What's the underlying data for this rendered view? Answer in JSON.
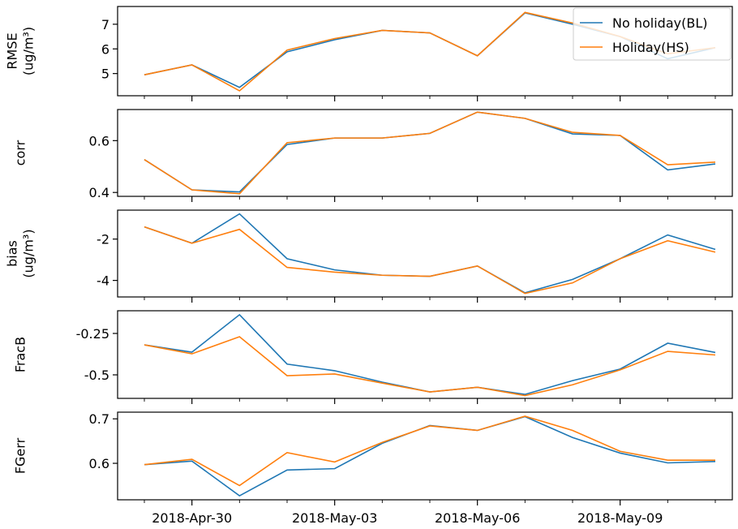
{
  "chart_data": [
    {
      "type": "line",
      "ylabel": [
        "RMSE",
        "(ug/m³)"
      ],
      "ylim": [
        4.1,
        7.72
      ],
      "yticks": [
        5,
        6,
        7
      ],
      "legend": "upper right",
      "x": [
        "2018-Apr-29",
        "2018-Apr-30",
        "2018-May-01",
        "2018-May-02",
        "2018-May-03",
        "2018-May-04",
        "2018-May-05",
        "2018-May-06",
        "2018-May-07",
        "2018-May-08",
        "2018-May-09",
        "2018-May-10",
        "2018-May-11"
      ],
      "series": [
        {
          "name": "No holiday(BL)",
          "color": "#1f77b4",
          "values": [
            4.95,
            5.35,
            4.44,
            5.88,
            6.37,
            6.75,
            6.65,
            5.72,
            7.46,
            7.0,
            6.5,
            5.6,
            6.05
          ]
        },
        {
          "name": "Holiday(HS)",
          "color": "#ff7f0e",
          "values": [
            4.95,
            5.35,
            4.3,
            5.95,
            6.42,
            6.75,
            6.65,
            5.72,
            7.48,
            7.05,
            6.5,
            5.8,
            6.05
          ]
        }
      ]
    },
    {
      "type": "line",
      "ylabel": [
        "corr"
      ],
      "ylim": [
        0.385,
        0.72
      ],
      "yticks": [
        0.4,
        0.6
      ],
      "x": [
        "2018-Apr-29",
        "2018-Apr-30",
        "2018-May-01",
        "2018-May-02",
        "2018-May-03",
        "2018-May-04",
        "2018-May-05",
        "2018-May-06",
        "2018-May-07",
        "2018-May-08",
        "2018-May-09",
        "2018-May-10",
        "2018-May-11"
      ],
      "series": [
        {
          "name": "No holiday(BL)",
          "color": "#1f77b4",
          "values": [
            0.527,
            0.41,
            0.402,
            0.585,
            0.61,
            0.61,
            0.628,
            0.71,
            0.686,
            0.626,
            0.62,
            0.487,
            0.51
          ]
        },
        {
          "name": "Holiday(HS)",
          "color": "#ff7f0e",
          "values": [
            0.527,
            0.41,
            0.395,
            0.592,
            0.61,
            0.61,
            0.628,
            0.71,
            0.686,
            0.632,
            0.62,
            0.507,
            0.517
          ]
        }
      ]
    },
    {
      "type": "line",
      "ylabel": [
        "bias",
        "(ug/m³)"
      ],
      "ylim": [
        -4.8,
        -0.6
      ],
      "yticks": [
        -4,
        -2
      ],
      "x": [
        "2018-Apr-29",
        "2018-Apr-30",
        "2018-May-01",
        "2018-May-02",
        "2018-May-03",
        "2018-May-04",
        "2018-May-05",
        "2018-May-06",
        "2018-May-07",
        "2018-May-08",
        "2018-May-09",
        "2018-May-10",
        "2018-May-11"
      ],
      "series": [
        {
          "name": "No holiday(BL)",
          "color": "#1f77b4",
          "values": [
            -1.41,
            -2.2,
            -0.78,
            -2.95,
            -3.49,
            -3.75,
            -3.8,
            -3.3,
            -4.6,
            -3.95,
            -2.95,
            -1.8,
            -2.5
          ]
        },
        {
          "name": "Holiday(HS)",
          "color": "#ff7f0e",
          "values": [
            -1.41,
            -2.2,
            -1.53,
            -3.37,
            -3.6,
            -3.75,
            -3.8,
            -3.3,
            -4.63,
            -4.12,
            -2.95,
            -2.08,
            -2.63
          ]
        }
      ]
    },
    {
      "type": "line",
      "ylabel": [
        "FracB"
      ],
      "ylim": [
        -0.642,
        -0.113
      ],
      "yticks": [
        -0.5,
        -0.25
      ],
      "x": [
        "2018-Apr-29",
        "2018-Apr-30",
        "2018-May-01",
        "2018-May-02",
        "2018-May-03",
        "2018-May-04",
        "2018-May-05",
        "2018-May-06",
        "2018-May-07",
        "2018-May-08",
        "2018-May-09",
        "2018-May-10",
        "2018-May-11"
      ],
      "series": [
        {
          "name": "No holiday(BL)",
          "color": "#1f77b4",
          "values": [
            -0.319,
            -0.363,
            -0.137,
            -0.435,
            -0.475,
            -0.544,
            -0.603,
            -0.575,
            -0.618,
            -0.535,
            -0.465,
            -0.309,
            -0.365
          ]
        },
        {
          "name": "Holiday(HS)",
          "color": "#ff7f0e",
          "values": [
            -0.319,
            -0.373,
            -0.27,
            -0.505,
            -0.495,
            -0.55,
            -0.603,
            -0.575,
            -0.625,
            -0.56,
            -0.47,
            -0.358,
            -0.38
          ]
        }
      ]
    },
    {
      "type": "line",
      "ylabel": [
        "FGerr"
      ],
      "ylim": [
        0.518,
        0.715
      ],
      "yticks": [
        0.6,
        0.7
      ],
      "x": [
        "2018-Apr-29",
        "2018-Apr-30",
        "2018-May-01",
        "2018-May-02",
        "2018-May-03",
        "2018-May-04",
        "2018-May-05",
        "2018-May-06",
        "2018-May-07",
        "2018-May-08",
        "2018-May-09",
        "2018-May-10",
        "2018-May-11"
      ],
      "xticks": [
        "2018-Apr-30",
        "2018-May-03",
        "2018-May-06",
        "2018-May-09"
      ],
      "series": [
        {
          "name": "No holiday(BL)",
          "color": "#1f77b4",
          "values": [
            0.597,
            0.605,
            0.527,
            0.585,
            0.588,
            0.645,
            0.685,
            0.674,
            0.705,
            0.658,
            0.623,
            0.601,
            0.604
          ]
        },
        {
          "name": "Holiday(HS)",
          "color": "#ff7f0e",
          "values": [
            0.597,
            0.609,
            0.55,
            0.624,
            0.603,
            0.647,
            0.684,
            0.674,
            0.706,
            0.674,
            0.627,
            0.607,
            0.607
          ]
        }
      ]
    }
  ]
}
